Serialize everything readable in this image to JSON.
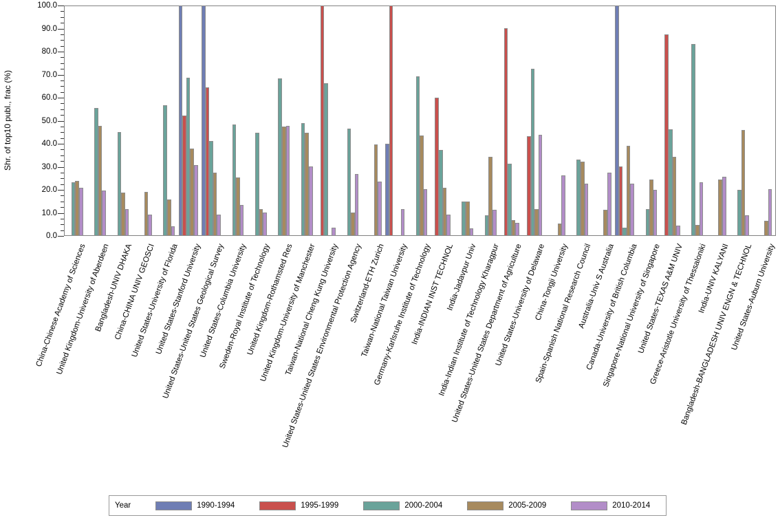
{
  "colors": {
    "background": "#FFFFFF",
    "bar_border": "#8C8C8C",
    "plot_border": "#818181",
    "tick": "#333333"
  },
  "chart_data": {
    "type": "bar",
    "title": "",
    "xlabel": "",
    "ylabel": "Shr. of top10 publ., frac (%)",
    "ylim": [
      0,
      100
    ],
    "ytick_step": 10,
    "yticks": [
      "0.0",
      "10.0",
      "20.0",
      "30.0",
      "40.0",
      "50.0",
      "60.0",
      "70.0",
      "80.0",
      "90.0",
      "100.0"
    ],
    "minor_tick_interval": 2.5,
    "grid": false,
    "legend": {
      "title": "Year",
      "position": "bottom"
    },
    "categories": [
      "China-Chinese Academy of Sciences",
      "United Kingdom-University of Aberdeen",
      "Bangladesh-UNIV DHAKA",
      "China-CHINA UNIV GEOSCI",
      "United States-University of Florida",
      "United States-Stanford University",
      "United States-United States Geological Survey",
      "United States-Columbia University",
      "Sweden-Royal Institute of Technology",
      "United Kingdom-Rothamsted Res",
      "United Kingdom-University of Manchester",
      "Taiwan-National Cheng Kung University",
      "United States-United States Environmental Protection Agency",
      "Switzerland-ETH Zurich",
      "Taiwan-National Taiwan University",
      "Germany-Karlsruhe Institute of Technology",
      "India-INDIAN INST TECHNOL",
      "India-Jadavpur Univ",
      "India-Indian Institute of Technology Kharagpur",
      "United States-United States Department of Agriculture",
      "United States-University of Delaware",
      "China-Tongji University",
      "Spain-Spanish National Research Council",
      "Australia-Univ S Australia",
      "Canada-University of British Columbia",
      "Singapore-National University of Singapore",
      "United States-TEXAS A&M UNIV",
      "Greece-Aristotle University of Thessaloniki",
      "India-UNIV KALYANI",
      "Bangladesh-BANGLADESH UNIV ENGN & TECHNOL",
      "United States-Auburn University"
    ],
    "series": [
      {
        "name": "1990-1994",
        "color": "#6F7EB4",
        "values": [
          null,
          null,
          null,
          null,
          null,
          100,
          100,
          null,
          null,
          null,
          null,
          null,
          null,
          null,
          40.1,
          null,
          null,
          null,
          null,
          null,
          null,
          null,
          null,
          null,
          100,
          null,
          null,
          null,
          null,
          null,
          null
        ]
      },
      {
        "name": "1995-1999",
        "color": "#C9504D",
        "values": [
          null,
          null,
          null,
          null,
          null,
          52.3,
          64.5,
          null,
          null,
          null,
          null,
          100,
          null,
          null,
          100,
          null,
          60.0,
          null,
          null,
          90.3,
          43.4,
          null,
          null,
          null,
          30.2,
          null,
          87.5,
          null,
          null,
          null,
          null
        ]
      },
      {
        "name": "2000-2004",
        "color": "#6AA39A",
        "values": [
          23.4,
          55.4,
          45.0,
          null,
          56.7,
          68.6,
          41.3,
          48.3,
          44.8,
          68.3,
          49.0,
          66.4,
          46.5,
          null,
          null,
          69.4,
          37.4,
          15.0,
          9.0,
          31.4,
          72.5,
          null,
          33.1,
          null,
          3.5,
          11.7,
          46.3,
          83.3,
          null,
          20.1,
          null
        ]
      },
      {
        "name": "2005-2009",
        "color": "#A78A5E",
        "values": [
          23.9,
          47.9,
          18.8,
          19.1,
          15.7,
          37.9,
          27.6,
          25.3,
          11.6,
          47.4,
          44.7,
          null,
          10.2,
          39.7,
          null,
          43.7,
          21.0,
          15.0,
          34.4,
          6.8,
          11.7,
          5.3,
          32.3,
          11.2,
          39.1,
          24.5,
          34.3,
          4.8,
          24.6,
          45.9,
          6.7
        ]
      },
      {
        "name": "2010-2014",
        "color": "#B28DC8",
        "values": [
          21.0,
          19.8,
          11.5,
          9.2,
          4.2,
          30.6,
          9.4,
          13.4,
          10.2,
          47.7,
          30.1,
          3.6,
          26.8,
          23.6,
          11.7,
          20.3,
          9.3,
          3.4,
          11.2,
          5.6,
          43.8,
          26.3,
          22.7,
          27.6,
          22.8,
          19.9,
          4.5,
          23.2,
          25.8,
          9.1,
          20.2
        ]
      }
    ]
  }
}
